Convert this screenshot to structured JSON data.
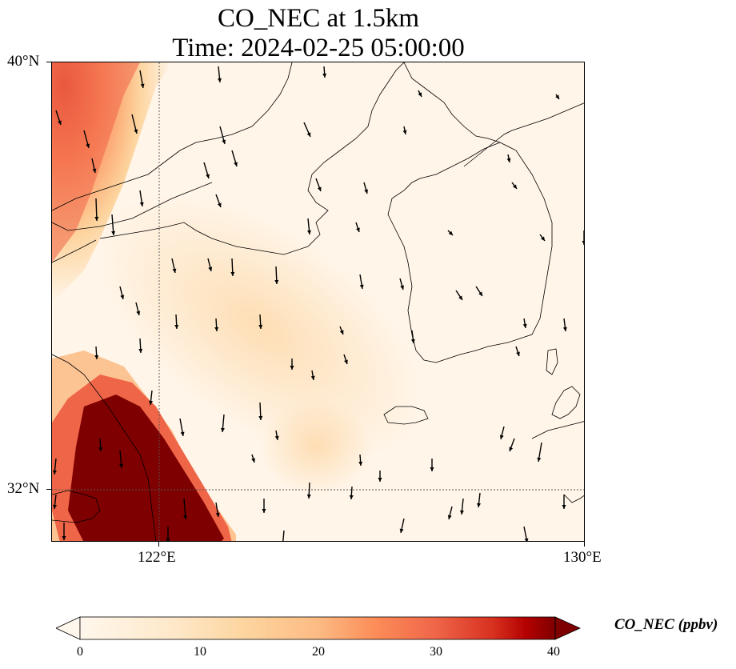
{
  "title": {
    "line1": "CO_NEC at 1.5km",
    "line2": "Time: 2024-02-25 05:00:00"
  },
  "axes": {
    "lat_labels": [
      "40°N",
      "32°N"
    ],
    "lon_labels": [
      "122°E",
      "130°E"
    ],
    "lon_range": [
      120.0,
      130.0
    ],
    "lat_range": [
      31.0,
      40.0
    ],
    "gridlines": "dotted at 122°E and 32°N"
  },
  "colorbar": {
    "label": "CO_NEC (ppbv)",
    "min": 0,
    "max": 40,
    "ticks": [
      "0",
      "10",
      "20",
      "30",
      "40"
    ],
    "colormap": "OrRd",
    "extend": "both",
    "colors": [
      "#fff7ec",
      "#fdd49e",
      "#fdbb84",
      "#fc8d59",
      "#e34a33",
      "#b30000",
      "#7f0000"
    ]
  },
  "map": {
    "field": "CO_NEC concentration at 1.5 km",
    "high_regions": [
      {
        "name": "northwest coast (Bohai)",
        "level_ppbv": 25
      },
      {
        "name": "Yangtze delta southwest",
        "level_ppbv": 40
      }
    ],
    "wind": "mostly southward arrows"
  }
}
